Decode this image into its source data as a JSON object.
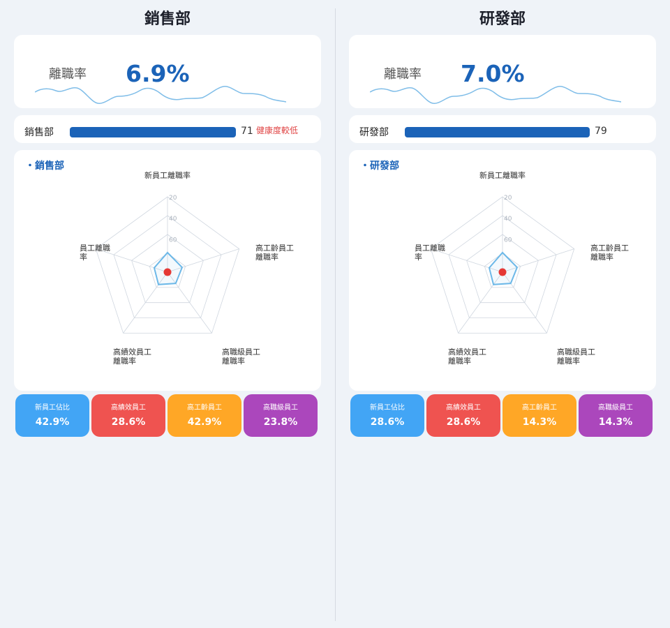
{
  "colors": {
    "accent": "#1b63b8",
    "warning": "#e04646",
    "sparkline": "#7fbde8",
    "radar_series": "#6cb8e8",
    "radar_center": "#e53935",
    "tile_blue": "#42a5f5",
    "tile_red": "#ef5350",
    "tile_orange": "#ffa726",
    "tile_purple": "#ab47bc"
  },
  "departments": [
    {
      "title": "銷售部",
      "rate_label": "離職率",
      "rate_value": "6.9%",
      "bar": {
        "label": "銷售部",
        "score": 71,
        "score_text": "71",
        "warning": "健康度較低"
      },
      "radar_title": "・銷售部",
      "radar_ticks": [
        "20",
        "40",
        "60"
      ],
      "radar_axes": [
        "新員工離職率",
        "高工齡員工\n離職率",
        "高職級員工\n離職率",
        "高績效員工\n離職率",
        "員工離職\n率"
      ],
      "tiles": [
        {
          "label": "新員工佔比",
          "value": "42.9%",
          "color": "#42a5f5"
        },
        {
          "label": "高績效員工",
          "value": "28.6%",
          "color": "#ef5350"
        },
        {
          "label": "高工齡員工",
          "value": "42.9%",
          "color": "#ffa726"
        },
        {
          "label": "高職級員工",
          "value": "23.8%",
          "color": "#ab47bc"
        }
      ]
    },
    {
      "title": "研發部",
      "rate_label": "離職率",
      "rate_value": "7.0%",
      "bar": {
        "label": "研發部",
        "score": 79,
        "score_text": "79",
        "warning": ""
      },
      "radar_title": "・研發部",
      "radar_ticks": [
        "20",
        "40",
        "60"
      ],
      "radar_axes": [
        "新員工離職率",
        "高工齡員工\n離職率",
        "高職級員工\n離職率",
        "高績效員工\n離職率",
        "員工離職\n率"
      ],
      "tiles": [
        {
          "label": "新員工佔比",
          "value": "28.6%",
          "color": "#42a5f5"
        },
        {
          "label": "高績效員工",
          "value": "28.6%",
          "color": "#ef5350"
        },
        {
          "label": "高工齡員工",
          "value": "14.3%",
          "color": "#ffa726"
        },
        {
          "label": "高職級員工",
          "value": "14.3%",
          "color": "#ab47bc"
        }
      ]
    }
  ]
}
